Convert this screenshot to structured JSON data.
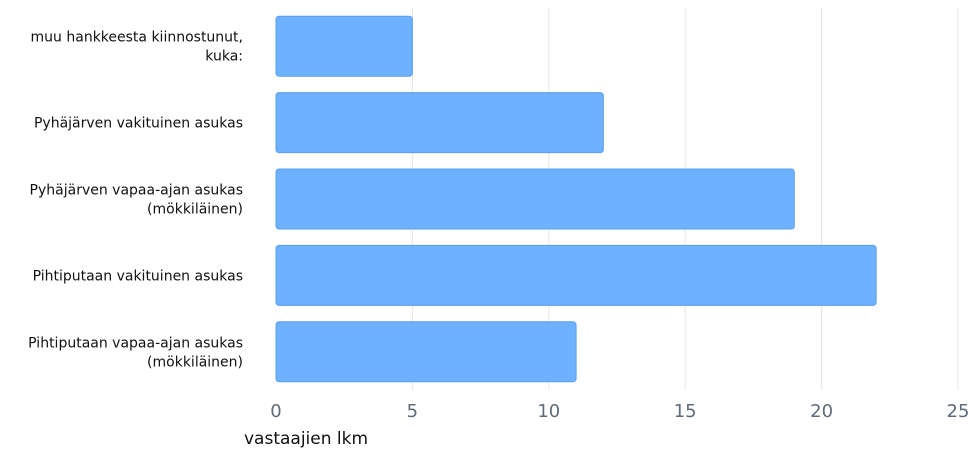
{
  "chart_data": {
    "type": "bar",
    "orientation": "horizontal",
    "categories": [
      [
        "muu hankkeesta kiinnostunut,",
        "kuka:"
      ],
      [
        "Pyhäjärven vakituinen asukas"
      ],
      [
        "Pyhäjärven vapaa-ajan asukas",
        "(mökkiläinen)"
      ],
      [
        "Pihtiputaan vakituinen asukas"
      ],
      [
        "Pihtiputaan vapaa-ajan asukas",
        "(mökkiläinen)"
      ]
    ],
    "values": [
      5,
      12,
      19,
      22,
      11
    ],
    "xlabel": "vastaajien lkm",
    "ylabel": "",
    "xlim": [
      0,
      25
    ],
    "xticks": [
      "0",
      "5",
      "10",
      "15",
      "20",
      "25"
    ],
    "grid": true,
    "colors": {
      "bar": "#6eb1ff",
      "bar_border": "#5a9ff0",
      "grid": "#e6e6e6",
      "tick_text": "#5f6b7a"
    }
  }
}
